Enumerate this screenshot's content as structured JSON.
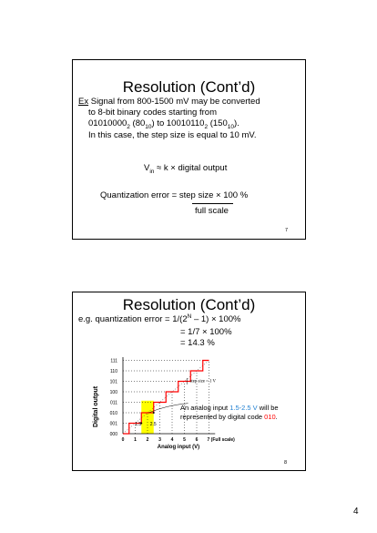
{
  "slide1": {
    "title": "Resolution (Cont’d)",
    "ex_label": "Ex",
    "line1": " Signal from 800-1500 mV may be converted",
    "line2": "to 8-bit binary codes starting from",
    "line3_a": "01010000",
    "line3_sub1": "2",
    "line3_b": " (80",
    "line3_sub2": "10",
    "line3_c": ") to 10010110",
    "line3_sub3": "2",
    "line3_d": " (150",
    "line3_sub4": "10",
    "line3_e": ").",
    "line4": "In this case, the step size is equal to 10 mV.",
    "formula_v": "V",
    "formula_sub": "in",
    "formula_rest": " ≈ k × digital output",
    "qe_left": "Quantization error = ",
    "qe_num": "step size",
    "qe_right": "  × 100 %",
    "qe_den": "full scale",
    "slide_number": "7"
  },
  "slide2": {
    "title": "Resolution (Cont’d)",
    "eq1_a": "e.g. quantization error = 1/(2",
    "eq1_sup": "N",
    "eq1_b": " – 1)  × 100%",
    "eq2": "= 1/7 × 100%",
    "eq3": "= 14.3 %",
    "annotation_a": "An analog input ",
    "annotation_range": "1.5-2.5 V",
    "annotation_b": " will be",
    "annotation_c": "represented by digital code ",
    "annotation_code": "010",
    "annotation_end": ".",
    "step_label": "step size = 1 V",
    "marker_15": "1.5",
    "marker_25": "2.5",
    "slide_number": "8"
  },
  "page_number": "4",
  "colors": {
    "red": "#ff0000",
    "blue": "#1f7fd1",
    "highlight": "#ffff00"
  },
  "chart_data": {
    "type": "line",
    "xlabel": "Analog input (V)",
    "ylabel": "Digital output",
    "x_ticks": [
      "0",
      "1",
      "2",
      "3",
      "4",
      "5",
      "6",
      "7 (Full scale)"
    ],
    "y_ticks": [
      "000",
      "001",
      "010",
      "011",
      "100",
      "101",
      "110",
      "111"
    ],
    "xlim": [
      0,
      7.5
    ],
    "ylim": [
      0,
      7
    ],
    "series": [
      {
        "steps": [
          [
            0,
            0
          ],
          [
            0.5,
            0
          ],
          [
            0.5,
            1
          ],
          [
            1.5,
            1
          ],
          [
            1.5,
            2
          ],
          [
            2.5,
            2
          ],
          [
            2.5,
            3
          ],
          [
            3.5,
            3
          ],
          [
            3.5,
            4
          ],
          [
            4.5,
            4
          ],
          [
            4.5,
            5
          ],
          [
            5.5,
            5
          ],
          [
            5.5,
            6
          ],
          [
            6.5,
            6
          ],
          [
            6.5,
            7
          ],
          [
            7,
            7
          ]
        ]
      }
    ],
    "highlight_x": [
      1.5,
      2.5
    ]
  }
}
